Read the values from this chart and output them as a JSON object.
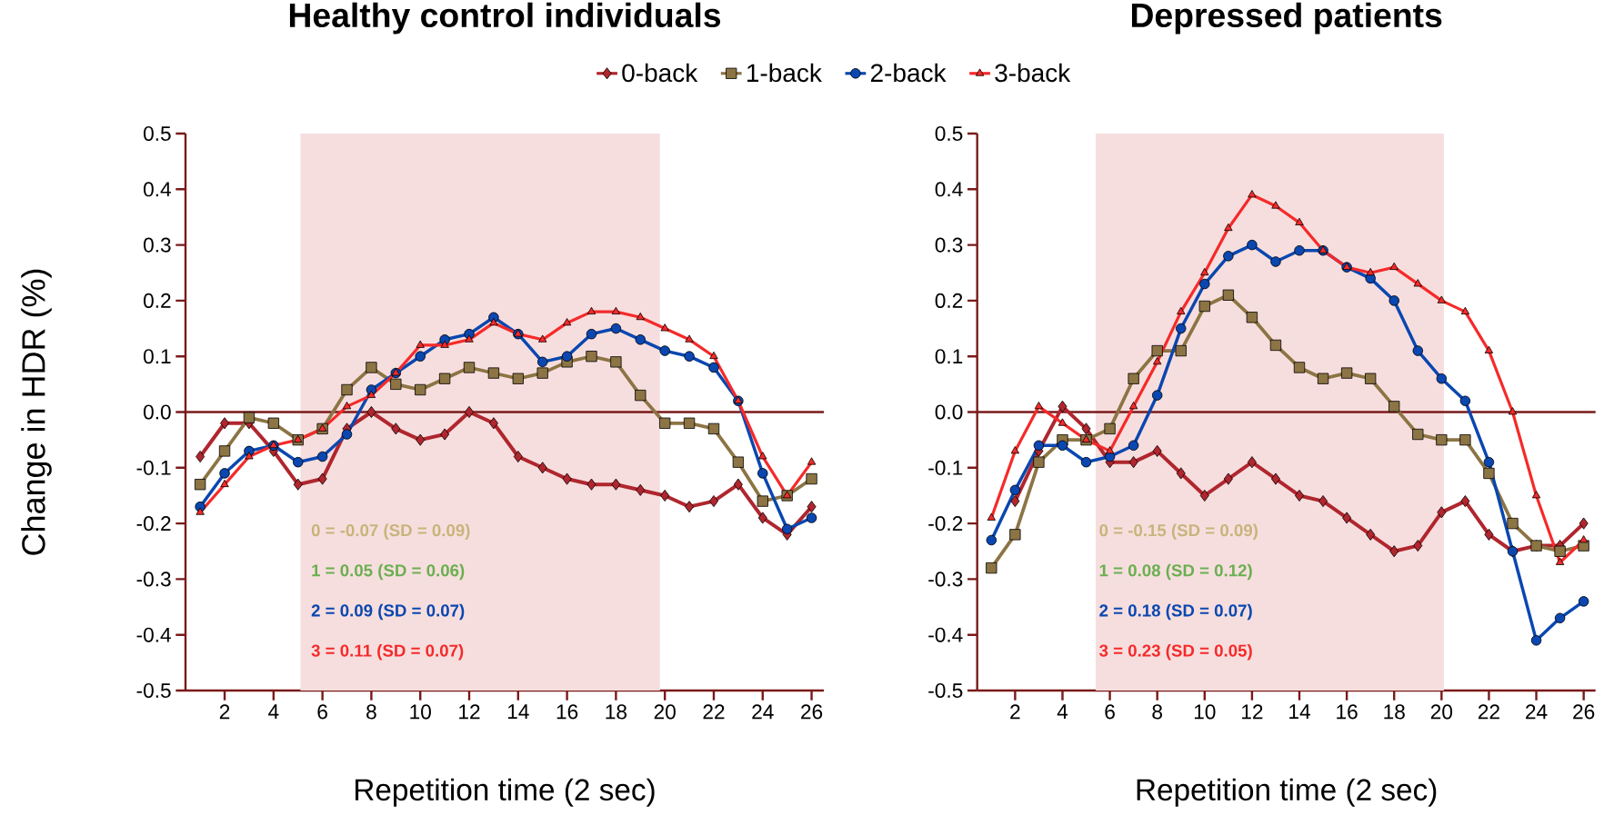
{
  "chart_data": [
    {
      "type": "line",
      "title": "Healthy control individuals",
      "xlabel": "Repetition time (2 sec)",
      "ylabel": "Change in HDR (%)",
      "x": [
        1,
        2,
        3,
        4,
        5,
        6,
        7,
        8,
        9,
        10,
        11,
        12,
        13,
        14,
        15,
        16,
        17,
        18,
        19,
        20,
        21,
        22,
        23,
        24,
        25,
        26
      ],
      "xlim": [
        0.4,
        26.5
      ],
      "xticks": [
        2,
        4,
        6,
        8,
        10,
        12,
        14,
        16,
        18,
        20,
        22,
        24,
        26
      ],
      "ylim": [
        -0.5,
        0.5
      ],
      "yticks": [
        -0.5,
        -0.4,
        -0.3,
        -0.2,
        -0.1,
        {
          "value": 0,
          "label": "0.0"
        },
        0.1,
        0.2,
        0.3,
        0.4,
        0.5
      ],
      "legend": "top",
      "series": [
        {
          "name": "0-back",
          "color": "#b0262e",
          "marker": "diamond",
          "values": [
            -0.08,
            -0.02,
            -0.02,
            -0.07,
            -0.13,
            -0.12,
            -0.03,
            0.0,
            -0.03,
            -0.05,
            -0.04,
            0.0,
            -0.02,
            -0.08,
            -0.1,
            -0.12,
            -0.13,
            -0.13,
            -0.14,
            -0.15,
            -0.17,
            -0.16,
            -0.13,
            -0.19,
            -0.22,
            -0.17
          ]
        },
        {
          "name": "1-back",
          "color": "#8c7444",
          "marker": "square",
          "values": [
            -0.13,
            -0.07,
            -0.01,
            -0.02,
            -0.05,
            -0.03,
            0.04,
            0.08,
            0.05,
            0.04,
            0.06,
            0.08,
            0.07,
            0.06,
            0.07,
            0.09,
            0.1,
            0.09,
            0.03,
            -0.02,
            -0.02,
            -0.03,
            -0.09,
            -0.16,
            -0.15,
            -0.12
          ]
        },
        {
          "name": "2-back",
          "color": "#0a47b0",
          "marker": "circle",
          "values": [
            -0.17,
            -0.11,
            -0.07,
            -0.06,
            -0.09,
            -0.08,
            -0.04,
            0.04,
            0.07,
            0.1,
            0.13,
            0.14,
            0.17,
            0.14,
            0.09,
            0.1,
            0.14,
            0.15,
            0.13,
            0.11,
            0.1,
            0.08,
            0.02,
            -0.11,
            -0.21,
            -0.19
          ]
        },
        {
          "name": "3-back",
          "color": "#f52a2a",
          "marker": "triangle",
          "values": [
            -0.18,
            -0.13,
            -0.08,
            -0.06,
            -0.05,
            -0.03,
            0.01,
            0.03,
            0.07,
            0.12,
            0.12,
            0.13,
            0.16,
            0.14,
            0.13,
            0.16,
            0.18,
            0.18,
            0.17,
            0.15,
            0.13,
            0.1,
            0.02,
            -0.08,
            -0.15,
            -0.09
          ]
        }
      ],
      "bands": [
        {
          "axis": "x",
          "from": 5.1,
          "to": 19.8,
          "color": "#f7dede"
        }
      ],
      "ref_lines": [
        {
          "axis": "y",
          "value": 0,
          "color": "#7a1a1a"
        }
      ],
      "annotations": [
        "0 = -0.07 (SD = 0.09)",
        "1 = 0.05 (SD = 0.06)",
        "2 = 0.09 (SD = 0.07)",
        "3 = 0.11 (SD = 0.07)"
      ]
    },
    {
      "type": "line",
      "title": "Depressed patients",
      "xlabel": "Repetition time (2 sec)",
      "x": [
        1,
        2,
        3,
        4,
        5,
        6,
        7,
        8,
        9,
        10,
        11,
        12,
        13,
        14,
        15,
        16,
        17,
        18,
        19,
        20,
        21,
        22,
        23,
        24,
        25,
        26
      ],
      "xlim": [
        0.4,
        26.5
      ],
      "xticks": [
        2,
        4,
        6,
        8,
        10,
        12,
        14,
        16,
        18,
        20,
        22,
        24,
        26
      ],
      "ylim": [
        -0.5,
        0.5
      ],
      "yticks": [
        -0.5,
        -0.4,
        -0.3,
        -0.2,
        -0.1,
        {
          "value": 0,
          "label": "0.0"
        },
        0.1,
        0.2,
        0.3,
        0.4,
        0.5
      ],
      "series": [
        {
          "color": "#b0262e",
          "marker": "diamond",
          "values": [
            null,
            -0.16,
            -0.07,
            0.01,
            -0.03,
            -0.09,
            -0.09,
            -0.07,
            -0.11,
            -0.15,
            -0.12,
            -0.09,
            -0.12,
            -0.15,
            -0.16,
            -0.19,
            -0.22,
            -0.25,
            -0.24,
            -0.18,
            -0.16,
            -0.22,
            -0.25,
            -0.24,
            -0.24,
            -0.2
          ]
        },
        {
          "color": "#8c7444",
          "marker": "square",
          "values": [
            -0.28,
            -0.22,
            -0.09,
            -0.05,
            -0.05,
            -0.03,
            0.06,
            0.11,
            0.11,
            0.19,
            0.21,
            0.17,
            0.12,
            0.08,
            0.06,
            0.07,
            0.06,
            0.01,
            -0.04,
            -0.05,
            -0.05,
            -0.11,
            -0.2,
            -0.24,
            -0.25,
            -0.24
          ]
        },
        {
          "color": "#0a47b0",
          "marker": "circle",
          "values": [
            -0.23,
            -0.14,
            -0.06,
            -0.06,
            -0.09,
            -0.08,
            -0.06,
            0.03,
            0.15,
            0.23,
            0.28,
            0.3,
            0.27,
            0.29,
            0.29,
            0.26,
            0.24,
            0.2,
            0.11,
            0.06,
            0.02,
            -0.09,
            -0.25,
            -0.41,
            -0.37,
            -0.34
          ]
        },
        {
          "color": "#f52a2a",
          "marker": "triangle",
          "values": [
            -0.19,
            -0.07,
            0.01,
            -0.02,
            -0.05,
            -0.07,
            0.01,
            0.09,
            0.18,
            0.25,
            0.33,
            0.39,
            0.37,
            0.34,
            0.29,
            0.26,
            0.25,
            0.26,
            0.23,
            0.2,
            0.18,
            0.11,
            0.0,
            -0.15,
            -0.27,
            -0.23
          ]
        }
      ],
      "bands": [
        {
          "axis": "x",
          "from": 5.4,
          "to": 20.1,
          "color": "#f7dede"
        }
      ],
      "ref_lines": [
        {
          "axis": "y",
          "value": 0,
          "color": "#7a1a1a"
        }
      ],
      "annotations": [
        "0 = -0.15 (SD = 0.09)",
        "1 = 0.08 (SD = 0.12)",
        "2 = 0.18 (SD = 0.07)",
        "3 = 0.23 (SD = 0.05)"
      ]
    }
  ]
}
